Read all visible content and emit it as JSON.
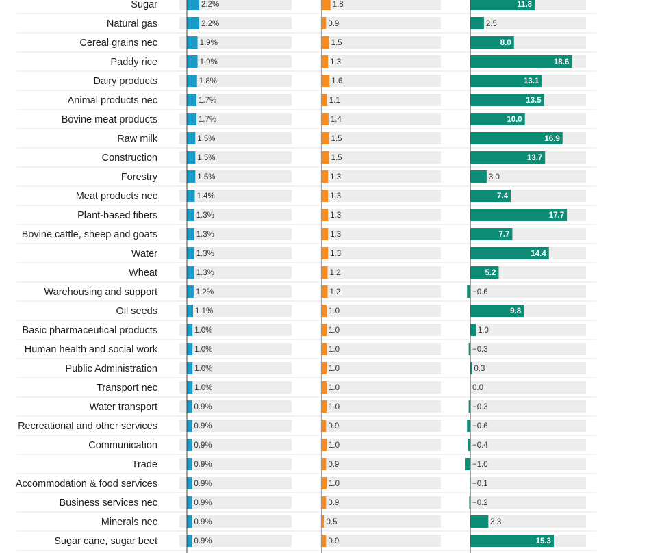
{
  "chart_data": {
    "type": "table",
    "colors": {
      "col1": "#1a9bc7",
      "col2": "#f68b1f",
      "col3": "#0e8d76",
      "track": "#ededed",
      "separator": "#e4e4e4",
      "axis": "#444444"
    },
    "categories": [
      "Sugar",
      "Natural gas",
      "Cereal grains nec",
      "Paddy rice",
      "Dairy products",
      "Animal products nec",
      "Bovine meat products",
      "Raw milk",
      "Construction",
      "Forestry",
      "Meat products nec",
      "Plant-based fibers",
      "Bovine cattle, sheep and goats",
      "Water",
      "Wheat",
      "Warehousing and support",
      "Oil seeds",
      "Basic pharmaceutical products",
      "Human health and social work",
      "Public Administration",
      "Transport nec",
      "Water transport",
      "Recreational and other services",
      "Communication",
      "Trade",
      "Accommodation & food services",
      "Business services nec",
      "Minerals nec",
      "Sugar cane, sugar beet"
    ],
    "series": [
      {
        "values": [
          2.2,
          2.2,
          1.9,
          1.9,
          1.8,
          1.7,
          1.7,
          1.5,
          1.5,
          1.5,
          1.4,
          1.3,
          1.3,
          1.3,
          1.3,
          1.2,
          1.1,
          1.0,
          1.0,
          1.0,
          1.0,
          0.9,
          0.9,
          0.9,
          0.9,
          0.9,
          0.9,
          0.9,
          0.9
        ],
        "labels": [
          "2.2%",
          "2.2%",
          "1.9%",
          "1.9%",
          "1.8%",
          "1.7%",
          "1.7%",
          "1.5%",
          "1.5%",
          "1.5%",
          "1.4%",
          "1.3%",
          "1.3%",
          "1.3%",
          "1.3%",
          "1.2%",
          "1.1%",
          "1.0%",
          "1.0%",
          "1.0%",
          "1.0%",
          "0.9%",
          "0.9%",
          "0.9%",
          "0.9%",
          "0.9%",
          "0.9%",
          "0.9%",
          "0.9%"
        ],
        "range": [
          0,
          20
        ]
      },
      {
        "values": [
          1.8,
          0.9,
          1.5,
          1.3,
          1.6,
          1.1,
          1.4,
          1.5,
          1.5,
          1.3,
          1.3,
          1.3,
          1.3,
          1.3,
          1.2,
          1.2,
          1.0,
          1.0,
          1.0,
          1.0,
          1.0,
          1.0,
          0.9,
          1.0,
          0.9,
          1.0,
          0.9,
          0.5,
          0.9
        ],
        "labels": [
          "1.8",
          "0.9",
          "1.5",
          "1.3",
          "1.6",
          "1.1",
          "1.4",
          "1.5",
          "1.5",
          "1.3",
          "1.3",
          "1.3",
          "1.3",
          "1.3",
          "1.2",
          "1.2",
          "1.0",
          "1.0",
          "1.0",
          "1.0",
          "1.0",
          "1.0",
          "0.9",
          "1.0",
          "0.9",
          "1.0",
          "0.9",
          "0.5",
          "0.9"
        ],
        "range": [
          0,
          25
        ]
      },
      {
        "values": [
          11.8,
          2.5,
          8.0,
          18.6,
          13.1,
          13.5,
          10.0,
          16.9,
          13.7,
          3.0,
          7.4,
          17.7,
          7.7,
          14.4,
          5.2,
          -0.6,
          9.8,
          1.0,
          -0.3,
          0.3,
          0.0,
          -0.3,
          -0.6,
          -0.4,
          -1.0,
          -0.1,
          -0.2,
          3.3,
          15.3
        ],
        "labels": [
          "11.8",
          "2.5",
          "8.0",
          "18.6",
          "13.1",
          "13.5",
          "10.0",
          "16.9",
          "13.7",
          "3.0",
          "7.4",
          "17.7",
          "7.7",
          "14.4",
          "5.2",
          "−0.6",
          "9.8",
          "1.0",
          "−0.3",
          "0.3",
          "0.0",
          "−0.3",
          "−0.6",
          "−0.4",
          "−1.0",
          "−0.1",
          "−0.2",
          "3.3",
          "15.3"
        ],
        "range": [
          0,
          21.2
        ]
      }
    ]
  }
}
